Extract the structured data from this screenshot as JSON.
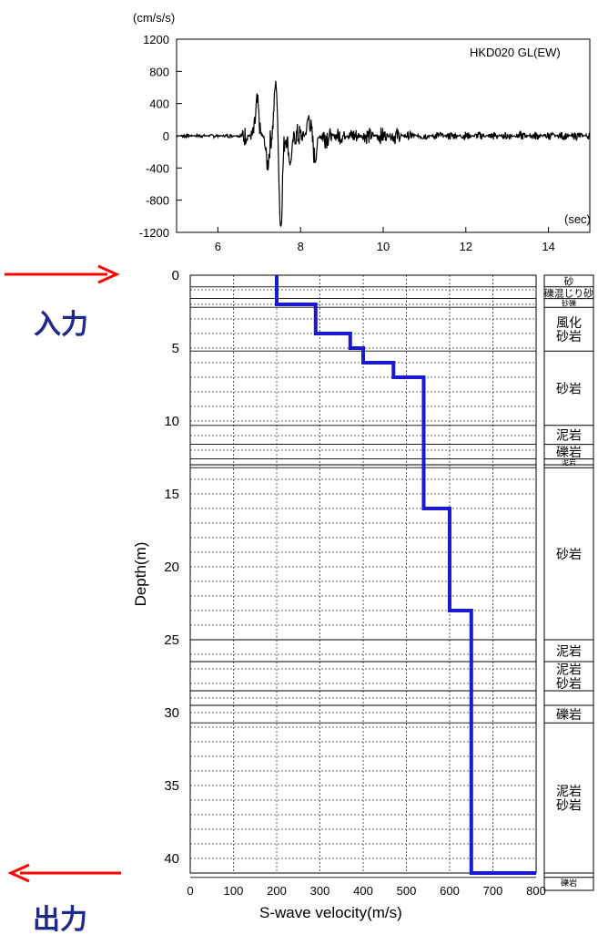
{
  "charts": {
    "waveform": {
      "type": "line",
      "title": "HKD020 GL(EW)",
      "xlabel": "(sec)",
      "ylabel": "(cm/s/s)",
      "xlim": [
        5.0,
        15.0
      ],
      "ylim": [
        -1200,
        1200
      ],
      "xticks": [
        6,
        8,
        10,
        12,
        14
      ],
      "yticks": [
        1200,
        800,
        400,
        0,
        -400,
        -800,
        -1200
      ],
      "grid": false,
      "line_color": "#000000",
      "peaks": [
        {
          "t": 6.95,
          "a": 400
        },
        {
          "t": 7.2,
          "a": -350
        },
        {
          "t": 7.4,
          "a": 660
        },
        {
          "t": 7.52,
          "a": -1130
        },
        {
          "t": 7.75,
          "a": -350
        },
        {
          "t": 8.2,
          "a": 230
        },
        {
          "t": 8.35,
          "a": -280
        }
      ]
    },
    "profile": {
      "type": "line",
      "xlabel": "S-wave velocity(m/s)",
      "ylabel": "Depth(m)",
      "xlim": [
        0,
        800
      ],
      "ylim": [
        41,
        0
      ],
      "xticks": [
        0,
        100,
        200,
        300,
        400,
        500,
        600,
        700,
        800
      ],
      "yticks": [
        0,
        5,
        10,
        15,
        20,
        25,
        30,
        35,
        40
      ],
      "grid": true,
      "line_color": "#1a1acc",
      "step_points": [
        [
          200,
          0
        ],
        [
          200,
          2
        ],
        [
          290,
          2
        ],
        [
          290,
          4
        ],
        [
          370,
          4
        ],
        [
          370,
          5
        ],
        [
          400,
          5
        ],
        [
          400,
          6
        ],
        [
          470,
          6
        ],
        [
          470,
          7
        ],
        [
          540,
          7
        ],
        [
          540,
          16
        ],
        [
          600,
          16
        ],
        [
          600,
          23
        ],
        [
          650,
          23
        ],
        [
          650,
          41
        ],
        [
          800,
          41
        ]
      ],
      "layer_boundaries": [
        0.8,
        1.6,
        2.2,
        5.2,
        10.3,
        11.6,
        12.6,
        13.0,
        13.2,
        25.0,
        26.5,
        28.5,
        29.5,
        30.7,
        41.0,
        41.3
      ]
    }
  },
  "geology": [
    {
      "top": 0.0,
      "bottom": 0.8,
      "label": "砂"
    },
    {
      "top": 0.8,
      "bottom": 1.6,
      "label": "礫混じり砂"
    },
    {
      "top": 1.6,
      "bottom": 2.2,
      "label": "砂礫"
    },
    {
      "top": 2.2,
      "bottom": 5.2,
      "label": "風化\n砂岩"
    },
    {
      "top": 5.2,
      "bottom": 10.3,
      "label": "砂岩"
    },
    {
      "top": 10.3,
      "bottom": 11.6,
      "label": "泥岩"
    },
    {
      "top": 11.6,
      "bottom": 12.6,
      "label": "礫岩"
    },
    {
      "top": 12.6,
      "bottom": 13.0,
      "label": "泥岩"
    },
    {
      "top": 13.2,
      "bottom": 25.0,
      "label": "砂岩"
    },
    {
      "top": 25.0,
      "bottom": 26.5,
      "label": "泥岩"
    },
    {
      "top": 26.5,
      "bottom": 28.5,
      "label": "泥岩\n砂岩"
    },
    {
      "top": 29.5,
      "bottom": 30.7,
      "label": "礫岩"
    },
    {
      "top": 30.7,
      "bottom": 41.0,
      "label": "泥岩\n砂岩"
    },
    {
      "top": 41.3,
      "bottom": 42.0,
      "label": "礫岩"
    }
  ],
  "annotations": {
    "input_label": "入力",
    "output_label": "出力",
    "arrow_color": "#ff0000"
  }
}
